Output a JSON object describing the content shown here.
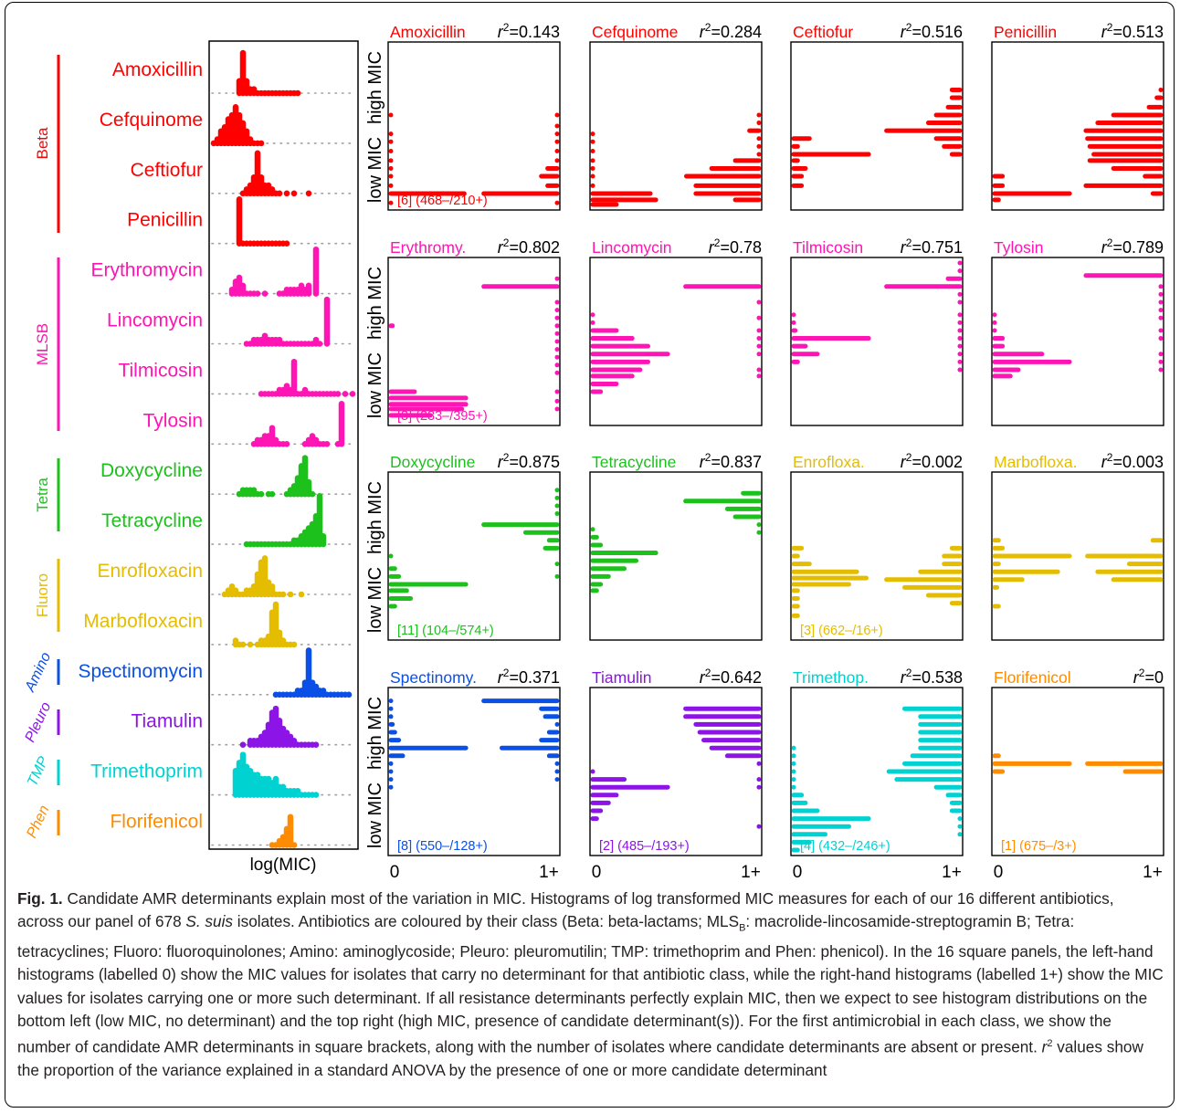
{
  "figure": {
    "colors": {
      "Beta": "#ff0000",
      "MLSB": "#ff14b4",
      "Tetra": "#1cc11c",
      "Fluoro": "#e5bd00",
      "Amino": "#0a50e6",
      "Pleuro": "#8c14e6",
      "TMP": "#00d2d2",
      "Phen": "#ff8c00",
      "dot_line": "#a0a0a0",
      "text": "#000000"
    },
    "classes": [
      {
        "label": "Beta",
        "color_key": "Beta"
      },
      {
        "label": "MLSB",
        "color_key": "MLSB"
      },
      {
        "label": "Tetra",
        "color_key": "Tetra"
      },
      {
        "label": "Fluoro",
        "color_key": "Fluoro"
      },
      {
        "label": "Amino",
        "color_key": "Amino"
      },
      {
        "label": "Pleuro",
        "color_key": "Pleuro"
      },
      {
        "label": "TMP",
        "color_key": "TMP"
      },
      {
        "label": "Phen",
        "color_key": "Phen"
      }
    ],
    "antibiotics": [
      {
        "name": "Amoxicillin",
        "color_key": "Beta"
      },
      {
        "name": "Cefquinome",
        "color_key": "Beta"
      },
      {
        "name": "Ceftiofur",
        "color_key": "Beta"
      },
      {
        "name": "Penicillin",
        "color_key": "Beta"
      },
      {
        "name": "Erythromycin",
        "color_key": "MLSB"
      },
      {
        "name": "Lincomycin",
        "color_key": "MLSB"
      },
      {
        "name": "Tilmicosin",
        "color_key": "MLSB"
      },
      {
        "name": "Tylosin",
        "color_key": "MLSB"
      },
      {
        "name": "Doxycycline",
        "color_key": "Tetra"
      },
      {
        "name": "Tetracycline",
        "color_key": "Tetra"
      },
      {
        "name": "Enrofloxacin",
        "color_key": "Fluoro"
      },
      {
        "name": "Marbofloxacin",
        "color_key": "Fluoro"
      },
      {
        "name": "Spectinomycin",
        "color_key": "Amino"
      },
      {
        "name": "Tiamulin",
        "color_key": "Pleuro"
      },
      {
        "name": "Trimethoprim",
        "color_key": "TMP"
      },
      {
        "name": "Florifenicol",
        "color_key": "Phen"
      }
    ],
    "left_xlabel": "log(MIC)",
    "ylabel_high": "high MIC",
    "ylabel_low": "low MIC",
    "x_tick_0": "0",
    "x_tick_1": "1+",
    "r2_symbol": "r",
    "r2_superscript": "2",
    "panels": [
      {
        "title": "Amoxicillin",
        "r2": "=0.143",
        "color_key": "Beta",
        "note": "[6] (468–/210+)"
      },
      {
        "title": "Cefquinome",
        "r2": "=0.284",
        "color_key": "Beta",
        "note": ""
      },
      {
        "title": "Ceftiofur",
        "r2": "=0.516",
        "color_key": "Beta",
        "note": ""
      },
      {
        "title": "Penicillin",
        "r2": "=0.513",
        "color_key": "Beta",
        "note": ""
      },
      {
        "title": "Erythromy.",
        "r2": "=0.802",
        "color_key": "MLSB",
        "note": "[8] (283–/395+)"
      },
      {
        "title": "Lincomycin",
        "r2": "=0.78",
        "color_key": "MLSB",
        "note": ""
      },
      {
        "title": "Tilmicosin",
        "r2": "=0.751",
        "color_key": "MLSB",
        "note": ""
      },
      {
        "title": "Tylosin",
        "r2": "=0.789",
        "color_key": "MLSB",
        "note": ""
      },
      {
        "title": "Doxycycline",
        "r2": "=0.875",
        "color_key": "Tetra",
        "note": "[11] (104–/574+)"
      },
      {
        "title": "Tetracycline",
        "r2": "=0.837",
        "color_key": "Tetra",
        "note": ""
      },
      {
        "title": "Enrofloxa.",
        "r2": "=0.002",
        "color_key": "Fluoro",
        "note": "[3] (662–/16+)"
      },
      {
        "title": "Marbofloxa.",
        "r2": "=0.003",
        "color_key": "Fluoro",
        "note": ""
      },
      {
        "title": "Spectinomy.",
        "r2": "=0.371",
        "color_key": "Amino",
        "note": "[8] (550–/128+)"
      },
      {
        "title": "Tiamulin",
        "r2": "=0.642",
        "color_key": "Pleuro",
        "note": "[2] (485–/193+)"
      },
      {
        "title": "Trimethop.",
        "r2": "=0.538",
        "color_key": "TMP",
        "note": "[4] (432–/246+)"
      },
      {
        "title": "Florifenicol",
        "r2": "=0",
        "color_key": "Phen",
        "note": "[1] (675–/3+)"
      }
    ]
  },
  "caption": {
    "fig_label": "Fig. 1.",
    "part1": " Candidate AMR determinants explain most of the variation in MIC. Histograms of log transformed MIC measures for each of our 16 different antibiotics, across our panel of 678 ",
    "species": "S. suis",
    "part2": " isolates. Antibiotics are coloured by their class (Beta: beta-lactams; MLS",
    "mls_sub": "B",
    "part3": ": macrolide-lincosamide-streptogramin B; Tetra: tetracyclines; Fluoro: fluoroquinolones; Amino: aminoglycoside; Pleuro: pleuromutilin; TMP: trimethoprim and Phen: phenicol). In the 16 square panels, the left-hand histograms (labelled 0) show the MIC values for isolates that carry no determinant for that antibiotic class, while the right-hand histograms (labelled 1+) show the MIC values for isolates carrying one or more such determinant. If all resistance determinants perfectly explain MIC, then we expect to see histogram distributions on the bottom left (low MIC, no determinant) and the top right (high MIC, presence of candidate determinant(s)). For the first antimicrobial in each class, we show the number of candidate AMR determinants in square brackets, along with the number of isolates where candidate determinants are absent or present. ",
    "r_sym": "r",
    "r_sup": "2",
    "part4": " values show the proportion of the variance explained in a standard ANOVA by the presence of one or more candidate determinant"
  }
}
